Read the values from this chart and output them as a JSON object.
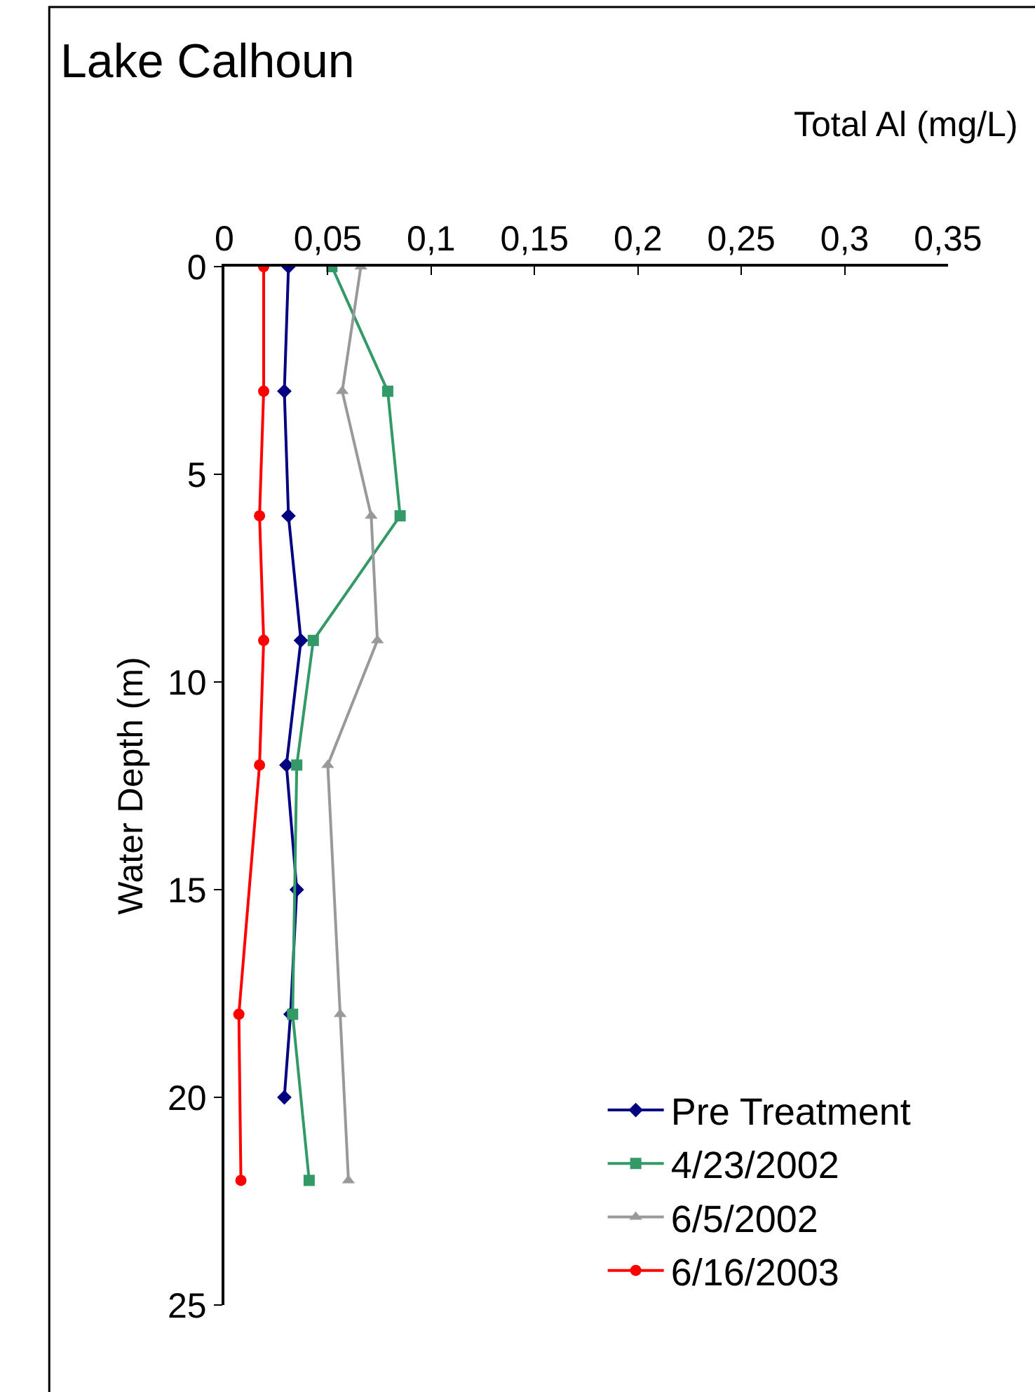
{
  "chart_data": {
    "type": "line",
    "title": "Lake Calhoun",
    "xlabel": "Total Al (mg/L)",
    "ylabel": "Water Depth (m)",
    "xlim": [
      0,
      0.35
    ],
    "xticks": [
      0,
      {
        "value": 0.05,
        "label": "0,05"
      },
      {
        "value": 0.1,
        "label": "0,1"
      },
      {
        "value": 0.15,
        "label": "0,15"
      },
      {
        "value": 0.2,
        "label": "0,2"
      },
      {
        "value": 0.25,
        "label": "0,25"
      },
      {
        "value": 0.3,
        "label": "0,3"
      },
      {
        "value": 0.35,
        "label": "0,35"
      }
    ],
    "ylim": [
      25,
      0
    ],
    "yticks": [
      0,
      5,
      10,
      15,
      20,
      25
    ],
    "legend": "bottom right",
    "series": [
      {
        "name": "Pre Treatment",
        "color": "#000080",
        "marker": "diamond",
        "x": [
          0.031,
          0.029,
          0.031,
          0.037,
          0.03,
          0.035,
          0.032,
          0.029
        ],
        "values": [
          0,
          3,
          6,
          9,
          12,
          15,
          18,
          20
        ]
      },
      {
        "name": "4/23/2002",
        "color": "#339966",
        "marker": "square",
        "x": [
          0.052,
          0.079,
          0.085,
          0.043,
          0.035,
          0.033,
          0.041
        ],
        "values": [
          0,
          3,
          6,
          9,
          12,
          18,
          22
        ]
      },
      {
        "name": "6/5/2002",
        "color": "#999999",
        "marker": "triangle",
        "x": [
          0.066,
          0.057,
          0.071,
          0.074,
          0.05,
          0.056,
          0.06
        ],
        "values": [
          0,
          3,
          6,
          9,
          12,
          18,
          22
        ]
      },
      {
        "name": "6/16/2003",
        "color": "#ff0000",
        "marker": "circle",
        "x": [
          0.019,
          0.019,
          0.017,
          0.019,
          0.017,
          0.007,
          0.008
        ],
        "values": [
          0,
          3,
          6,
          9,
          12,
          18,
          22
        ]
      }
    ]
  }
}
